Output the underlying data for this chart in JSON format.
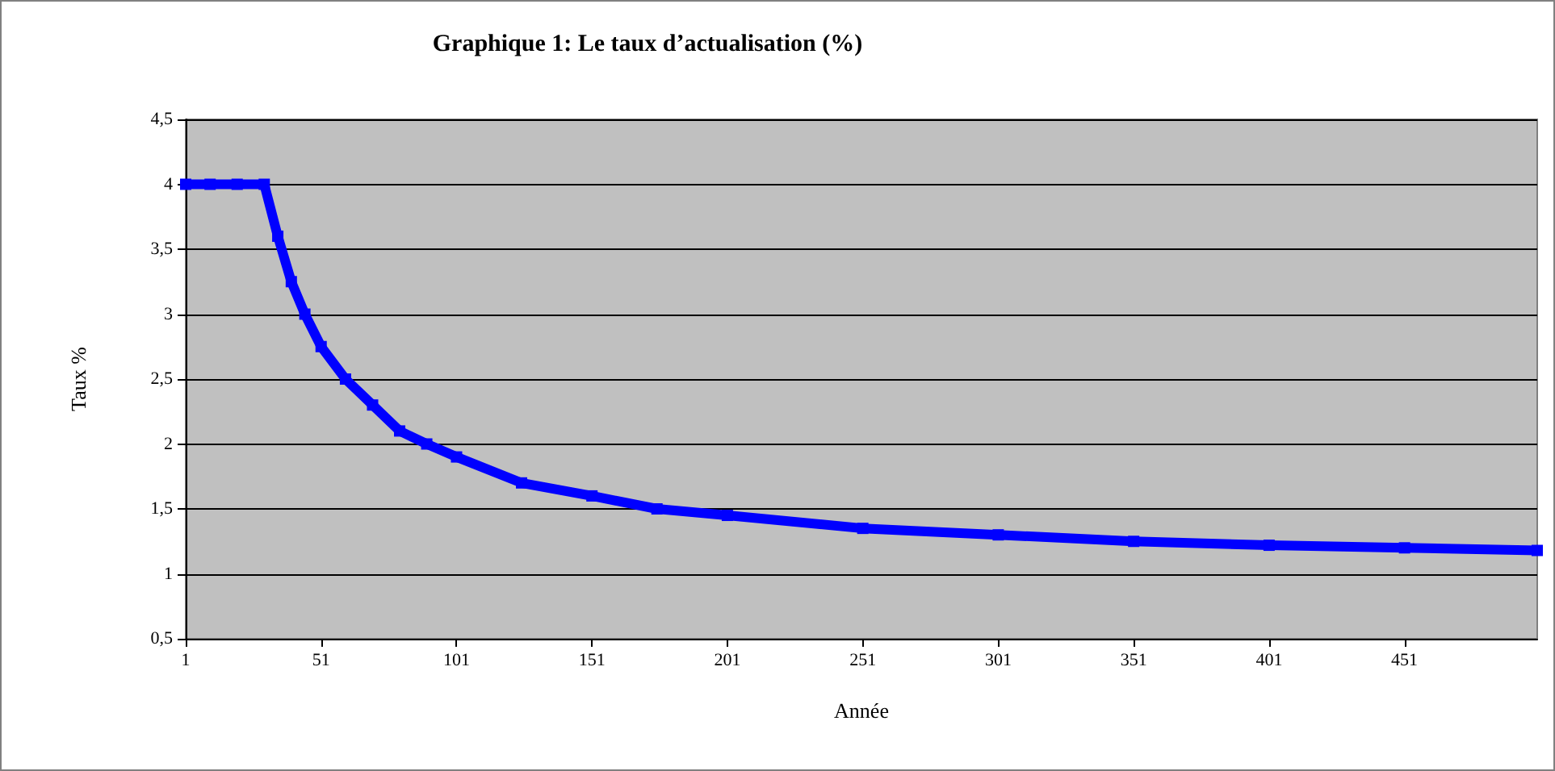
{
  "chart_data": {
    "type": "line",
    "title": "Graphique 1: Le taux d’actualisation (%)",
    "xlabel": "Année",
    "ylabel": "Taux %",
    "x": [
      1,
      10,
      20,
      30,
      35,
      40,
      45,
      51,
      60,
      70,
      80,
      90,
      101,
      125,
      151,
      175,
      201,
      251,
      301,
      351,
      401,
      451,
      500
    ],
    "series": [
      {
        "color": "#0000ff",
        "values": [
          4,
          4,
          4,
          4,
          3.6,
          3.25,
          3.0,
          2.75,
          2.5,
          2.3,
          2.1,
          2.0,
          1.9,
          1.7,
          1.6,
          1.5,
          1.45,
          1.35,
          1.3,
          1.25,
          1.22,
          1.2,
          1.18
        ]
      }
    ],
    "xlim": [
      1,
      500
    ],
    "xticks": [
      1,
      51,
      101,
      151,
      201,
      251,
      301,
      351,
      401,
      451
    ],
    "ylim": [
      0.5,
      4.5
    ],
    "yticks": [
      {
        "value": 0.5,
        "label": "0,5"
      },
      1,
      {
        "value": 1.5,
        "label": "1,5"
      },
      2,
      {
        "value": 2.5,
        "label": "2,5"
      },
      3,
      {
        "value": 3.5,
        "label": "3,5"
      },
      4,
      {
        "value": 4.5,
        "label": "4,5"
      }
    ],
    "grid": "y",
    "marker": "square",
    "line_style": "solid"
  }
}
